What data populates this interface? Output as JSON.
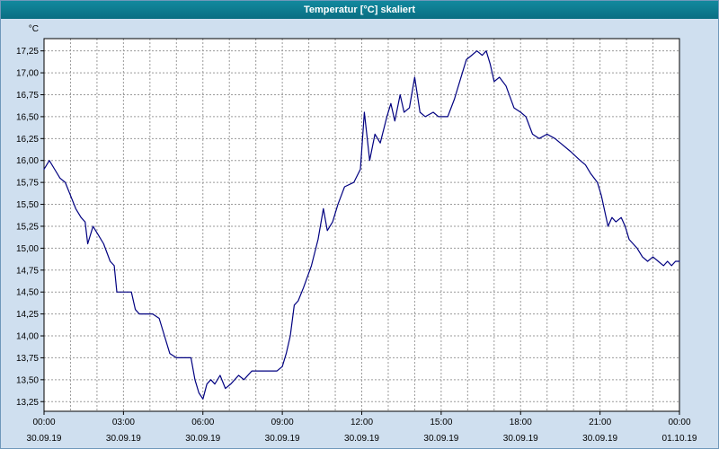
{
  "window": {
    "title": "Temperatur [°C] skaliert"
  },
  "colors": {
    "titlebar": "#0d7c90",
    "window_bg": "#cfdfef",
    "plot_bg": "#ffffff",
    "grid": "#9a9a9a",
    "frame": "#000000",
    "line": "#000080"
  },
  "chart_data": {
    "type": "line",
    "title": "Temperatur [°C] skaliert",
    "xlabel": "",
    "ylabel": "°C",
    "grid": true,
    "legend": "none",
    "xlim": [
      0,
      24
    ],
    "ylim": [
      13.14,
      17.39
    ],
    "y_ticks": [
      17.25,
      17.0,
      16.75,
      16.5,
      16.25,
      16.0,
      15.75,
      15.5,
      15.25,
      15.0,
      14.75,
      14.5,
      14.25,
      14.0,
      13.75,
      13.5,
      13.25
    ],
    "y_tick_labels": [
      "17,25",
      "17,00",
      "16,75",
      "16,50",
      "16,25",
      "16,00",
      "15,75",
      "15,50",
      "15,25",
      "15,00",
      "14,75",
      "14,50",
      "14,25",
      "14,00",
      "13,75",
      "13,50",
      "13,25"
    ],
    "x_ticks": [
      {
        "t": 0,
        "time": "00:00",
        "date": "30.09.19"
      },
      {
        "t": 3,
        "time": "03:00",
        "date": "30.09.19"
      },
      {
        "t": 6,
        "time": "06:00",
        "date": "30.09.19"
      },
      {
        "t": 9,
        "time": "09:00",
        "date": "30.09.19"
      },
      {
        "t": 12,
        "time": "12:00",
        "date": "30.09.19"
      },
      {
        "t": 15,
        "time": "15:00",
        "date": "30.09.19"
      },
      {
        "t": 18,
        "time": "18:00",
        "date": "30.09.19"
      },
      {
        "t": 21,
        "time": "21:00",
        "date": "30.09.19"
      },
      {
        "t": 24,
        "time": "00:00",
        "date": "01.10.19"
      }
    ],
    "series": [
      {
        "name": "Temperatur",
        "color": "#000080",
        "points": [
          [
            0,
            15.9
          ],
          [
            0.2,
            16.0
          ],
          [
            0.4,
            15.9
          ],
          [
            0.6,
            15.8
          ],
          [
            0.8,
            15.75
          ],
          [
            1.0,
            15.6
          ],
          [
            1.2,
            15.45
          ],
          [
            1.4,
            15.35
          ],
          [
            1.55,
            15.3
          ],
          [
            1.65,
            15.05
          ],
          [
            1.85,
            15.25
          ],
          [
            2.05,
            15.15
          ],
          [
            2.25,
            15.05
          ],
          [
            2.5,
            14.85
          ],
          [
            2.65,
            14.8
          ],
          [
            2.75,
            14.5
          ],
          [
            3.3,
            14.5
          ],
          [
            3.45,
            14.3
          ],
          [
            3.6,
            14.25
          ],
          [
            4.1,
            14.25
          ],
          [
            4.35,
            14.2
          ],
          [
            4.55,
            14.0
          ],
          [
            4.75,
            13.8
          ],
          [
            5.0,
            13.75
          ],
          [
            5.55,
            13.75
          ],
          [
            5.7,
            13.5
          ],
          [
            5.85,
            13.35
          ],
          [
            6.0,
            13.28
          ],
          [
            6.15,
            13.45
          ],
          [
            6.3,
            13.5
          ],
          [
            6.45,
            13.45
          ],
          [
            6.65,
            13.55
          ],
          [
            6.85,
            13.4
          ],
          [
            7.05,
            13.45
          ],
          [
            7.35,
            13.55
          ],
          [
            7.55,
            13.5
          ],
          [
            7.85,
            13.6
          ],
          [
            8.8,
            13.6
          ],
          [
            9.0,
            13.65
          ],
          [
            9.15,
            13.8
          ],
          [
            9.3,
            14.0
          ],
          [
            9.45,
            14.35
          ],
          [
            9.6,
            14.4
          ],
          [
            9.8,
            14.55
          ],
          [
            10.1,
            14.8
          ],
          [
            10.35,
            15.1
          ],
          [
            10.55,
            15.45
          ],
          [
            10.7,
            15.2
          ],
          [
            10.9,
            15.3
          ],
          [
            11.1,
            15.5
          ],
          [
            11.35,
            15.7
          ],
          [
            11.7,
            15.75
          ],
          [
            11.95,
            15.9
          ],
          [
            12.1,
            16.55
          ],
          [
            12.3,
            16.0
          ],
          [
            12.5,
            16.3
          ],
          [
            12.7,
            16.2
          ],
          [
            12.95,
            16.5
          ],
          [
            13.1,
            16.65
          ],
          [
            13.25,
            16.45
          ],
          [
            13.45,
            16.75
          ],
          [
            13.6,
            16.55
          ],
          [
            13.8,
            16.6
          ],
          [
            14.0,
            16.95
          ],
          [
            14.2,
            16.55
          ],
          [
            14.4,
            16.5
          ],
          [
            14.7,
            16.55
          ],
          [
            14.9,
            16.5
          ],
          [
            15.25,
            16.5
          ],
          [
            15.5,
            16.7
          ],
          [
            15.7,
            16.9
          ],
          [
            15.95,
            17.15
          ],
          [
            16.15,
            17.2
          ],
          [
            16.35,
            17.25
          ],
          [
            16.55,
            17.2
          ],
          [
            16.7,
            17.25
          ],
          [
            16.85,
            17.1
          ],
          [
            17.0,
            16.9
          ],
          [
            17.2,
            16.95
          ],
          [
            17.45,
            16.85
          ],
          [
            17.75,
            16.6
          ],
          [
            18.0,
            16.55
          ],
          [
            18.2,
            16.5
          ],
          [
            18.45,
            16.3
          ],
          [
            18.7,
            16.25
          ],
          [
            19.0,
            16.3
          ],
          [
            19.3,
            16.25
          ],
          [
            19.5,
            16.2
          ],
          [
            19.9,
            16.1
          ],
          [
            20.25,
            16.0
          ],
          [
            20.45,
            15.95
          ],
          [
            20.65,
            15.85
          ],
          [
            20.9,
            15.75
          ],
          [
            21.05,
            15.6
          ],
          [
            21.3,
            15.25
          ],
          [
            21.45,
            15.35
          ],
          [
            21.6,
            15.3
          ],
          [
            21.8,
            15.35
          ],
          [
            21.95,
            15.25
          ],
          [
            22.1,
            15.1
          ],
          [
            22.4,
            15.0
          ],
          [
            22.6,
            14.9
          ],
          [
            22.8,
            14.85
          ],
          [
            23.0,
            14.9
          ],
          [
            23.2,
            14.85
          ],
          [
            23.4,
            14.8
          ],
          [
            23.55,
            14.85
          ],
          [
            23.7,
            14.8
          ],
          [
            23.85,
            14.85
          ],
          [
            24,
            14.85
          ]
        ]
      }
    ]
  }
}
